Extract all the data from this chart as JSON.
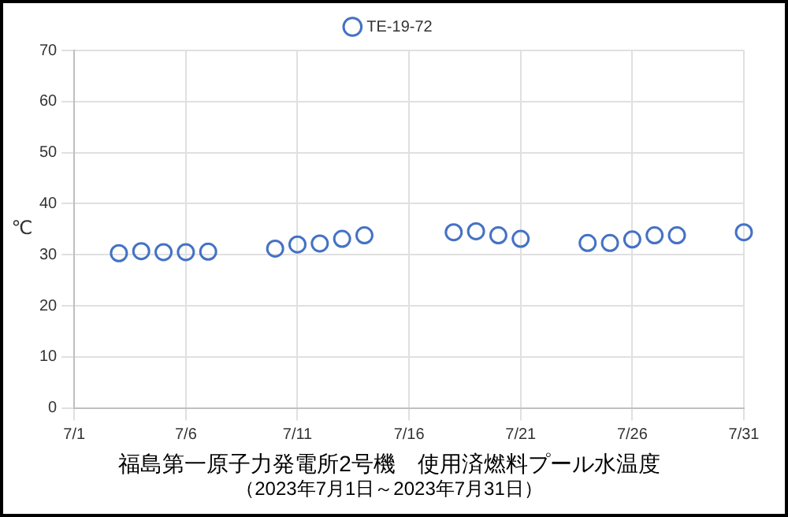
{
  "chart_data": {
    "type": "scatter",
    "title": "福島第一原子力発電所2号機　使用済燃料プール水温度",
    "subtitle": "（2023年7月1日～2023年7月31日）",
    "ylabel": "℃",
    "x": [
      "--07-03",
      "--07-04",
      "--07-05",
      "--07-06",
      "--07-07",
      "--07-10",
      "--07-11",
      "--07-12",
      "--07-13",
      "--07-14",
      "--07-18",
      "--07-19",
      "--07-20",
      "--07-21",
      "--07-24",
      "--07-25",
      "--07-26",
      "--07-27",
      "--07-28",
      "--07-31"
    ],
    "series": [
      {
        "name": "TE-19-72",
        "color": "#4472c4",
        "values": [
          30.3,
          30.7,
          30.5,
          30.5,
          30.6,
          31.2,
          32.0,
          32.2,
          33.1,
          33.8,
          34.4,
          34.6,
          33.8,
          33.1,
          32.3,
          32.3,
          33.0,
          33.8,
          33.8,
          34.4
        ]
      }
    ],
    "xlim": [
      "--07-01",
      "--07-31"
    ],
    "xticks": [
      {
        "value": "--07-01",
        "label": "7/1"
      },
      {
        "value": "--07-06",
        "label": "7/6"
      },
      {
        "value": "--07-11",
        "label": "7/11"
      },
      {
        "value": "--07-16",
        "label": "7/16"
      },
      {
        "value": "--07-21",
        "label": "7/21"
      },
      {
        "value": "--07-26",
        "label": "7/26"
      },
      {
        "value": "--07-31",
        "label": "7/31"
      }
    ],
    "ylim": [
      0,
      70
    ],
    "yticks": [
      0,
      10,
      20,
      30,
      40,
      50,
      60,
      70
    ],
    "grid": true,
    "legend": "top",
    "marker": "circle"
  }
}
